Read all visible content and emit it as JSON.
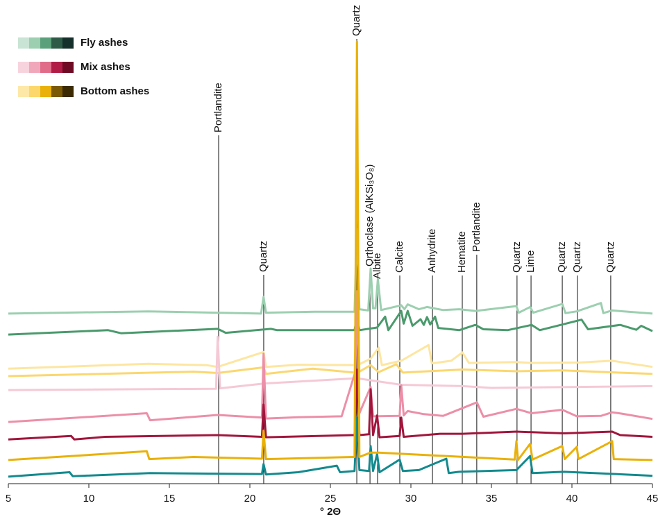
{
  "chart_data": {
    "type": "line",
    "xlabel": "° 2Θ",
    "xlim": [
      5,
      45
    ],
    "xticks": [
      5,
      10,
      15,
      20,
      25,
      30,
      35,
      40,
      45
    ],
    "ylim": [
      0,
      100
    ],
    "legend_groups": [
      {
        "name": "Fly ashes",
        "color": "#17908f",
        "swatches": [
          "#c9e4d4",
          "#9bcfb0",
          "#5aa07a",
          "#2d5b47",
          "#15302a"
        ]
      },
      {
        "name": "Mix ashes",
        "color": "#d9285c",
        "swatches": [
          "#f7d3dd",
          "#f1a7ba",
          "#e06c89",
          "#b01c46",
          "#6e0a24"
        ]
      },
      {
        "name": "Bottom ashes",
        "color": "#e8ac05",
        "swatches": [
          "#fde8a8",
          "#fcd76c",
          "#e9b109",
          "#7a5a05",
          "#3b2a02"
        ]
      }
    ],
    "reference_lines": [
      {
        "x": 18.06,
        "label": "Portlandite"
      },
      {
        "x": 20.86,
        "label": "Quartz"
      },
      {
        "x": 26.64,
        "label": "Quartz"
      },
      {
        "x": 27.46,
        "label": "Orthoclase (AlKSi₃O₈)"
      },
      {
        "x": 27.93,
        "label": "Albite"
      },
      {
        "x": 29.31,
        "label": "Calcite"
      },
      {
        "x": 31.34,
        "label": "Anhydrite"
      },
      {
        "x": 33.19,
        "label": "Hematite"
      },
      {
        "x": 34.09,
        "label": "Portlandite"
      },
      {
        "x": 36.59,
        "label": "Quartz"
      },
      {
        "x": 37.46,
        "label": "Lime"
      },
      {
        "x": 39.4,
        "label": "Quartz"
      },
      {
        "x": 40.34,
        "label": "Quartz"
      },
      {
        "x": 42.41,
        "label": "Quartz"
      }
    ],
    "series": [
      {
        "color": "#9ccfb0",
        "x": [
          5,
          13.7,
          20.7,
          20.85,
          21.0,
          24,
          26.5,
          26.65,
          26.8,
          27.35,
          27.5,
          27.65,
          27.8,
          27.95,
          28.15,
          29.4,
          29.6,
          29.8,
          30.5,
          31,
          32,
          33,
          34,
          36.55,
          36.7,
          37.4,
          37.6,
          39.4,
          39.6,
          40.3,
          41.8,
          41.95,
          42.5,
          45
        ],
        "values": [
          37.8,
          38.3,
          37.8,
          41.6,
          38.0,
          38.2,
          38.2,
          57.1,
          38.8,
          38.5,
          48.1,
          39,
          39,
          45.7,
          38.6,
          39.7,
          38.8,
          39.9,
          38.8,
          39.3,
          38.6,
          38.8,
          38.4,
          39.5,
          38,
          39.3,
          38,
          40,
          37.9,
          38.3,
          40.2,
          37.9,
          38.5,
          37.8
        ]
      },
      {
        "color": "#4a9a6c",
        "x": [
          5,
          11.2,
          12,
          18,
          18.5,
          21.3,
          21.7,
          23.5,
          26.5,
          26.65,
          26.8,
          27.9,
          28.4,
          28.6,
          29.4,
          29.55,
          29.8,
          30.1,
          30.6,
          30.8,
          31,
          31.2,
          31.5,
          31.7,
          33,
          34,
          34.5,
          36,
          37.5,
          38,
          40.6,
          41,
          43,
          44,
          44.3,
          45
        ],
        "values": [
          33.0,
          34.0,
          33.3,
          34.3,
          33.4,
          34.3,
          34.0,
          34.0,
          34,
          37,
          34,
          34.6,
          37.1,
          34,
          38.4,
          35.5,
          38.4,
          35,
          36.5,
          35.2,
          37,
          35.3,
          37.1,
          34.5,
          34,
          35.2,
          34.2,
          34,
          35.2,
          34,
          36.4,
          34.2,
          35.2,
          34.1,
          35,
          33.8
        ]
      },
      {
        "color": "#fde6a1",
        "x": [
          5,
          13.7,
          17.3,
          18,
          20.85,
          21,
          23,
          26.5,
          26.65,
          26.8,
          27.5,
          28.0,
          28.2,
          29.4,
          31.1,
          31.3,
          32.5,
          33.2,
          33.6,
          36.55,
          37.5,
          40.5,
          42.5,
          45
        ],
        "values": [
          25.2,
          26.3,
          26,
          25.6,
          29,
          25.6,
          26.1,
          26,
          36,
          26.2,
          27.5,
          30,
          26,
          27,
          30.6,
          26.4,
          27,
          28.9,
          26.5,
          26.7,
          26.5,
          26.6,
          27,
          25.6
        ]
      },
      {
        "color": "#fbd770",
        "x": [
          5,
          16.5,
          18,
          20.85,
          21,
          23.9,
          26.5,
          26.65,
          26.8,
          27.5,
          28,
          29.1,
          29.5,
          33.2,
          36.55,
          39.4,
          45
        ],
        "values": [
          23.5,
          24.5,
          24.2,
          25.5,
          24,
          25.2,
          24.3,
          40,
          24.5,
          26,
          24.4,
          26.2,
          24.3,
          25,
          24.6,
          24.8,
          24
        ]
      },
      {
        "color": "#f5c9d6",
        "x": [
          5,
          17.9,
          18.0,
          18.15,
          20.85,
          26.65,
          29.4,
          33.2,
          35,
          45
        ],
        "values": [
          20.3,
          20.6,
          32.5,
          20.7,
          21.8,
          23,
          21.5,
          21.2,
          20.8,
          21.2
        ]
      },
      {
        "color": "#ec8fa8",
        "x": [
          5,
          13.6,
          13.8,
          18,
          20.75,
          20.85,
          21,
          23,
          25.7,
          26.55,
          26.65,
          26.8,
          27.5,
          27.65,
          29.3,
          29.4,
          29.55,
          29.8,
          30.8,
          32,
          34.1,
          34.5,
          36.55,
          37.5,
          39.4,
          40.3,
          41.8,
          42.5,
          43.1,
          45
        ],
        "values": [
          13.0,
          15,
          13.4,
          14.6,
          14,
          28.6,
          13.8,
          14.1,
          14.3,
          24.5,
          42.9,
          15,
          21,
          14.3,
          14.4,
          21.4,
          14.5,
          15.5,
          14.8,
          14.4,
          17.5,
          14.2,
          16,
          15,
          15.8,
          14.3,
          14.4,
          15.2,
          14.9,
          13.7
        ]
      },
      {
        "color": "#a0163c",
        "x": [
          5,
          8.9,
          9.1,
          11,
          18,
          20.75,
          20.85,
          21,
          26.5,
          26.65,
          26.8,
          27.4,
          27.5,
          27.65,
          27.9,
          28.05,
          29.3,
          29.4,
          29.55,
          31.8,
          33.2,
          36.55,
          39.5,
          42.5,
          43,
          45
        ],
        "values": [
          9,
          9.8,
          9,
          9.6,
          10,
          9.6,
          17,
          9.5,
          10,
          25,
          10,
          10.2,
          20.5,
          10,
          14.5,
          9.5,
          9.8,
          14,
          9.6,
          10.3,
          10.3,
          10.8,
          10.4,
          10.8,
          10,
          9.6
        ]
      },
      {
        "color": "#138a8e",
        "x": [
          5,
          8.8,
          9,
          13.8,
          20.75,
          20.85,
          21,
          23,
          25.4,
          25.6,
          26.5,
          26.65,
          26.8,
          27.4,
          27.5,
          27.65,
          27.9,
          28.05,
          29.3,
          29.5,
          30.5,
          32.2,
          32.35,
          33,
          36.55,
          37.4,
          37.55,
          39.5,
          42,
          45
        ],
        "values": [
          0.5,
          1.5,
          0.6,
          1.3,
          1.1,
          3.4,
          1,
          1.5,
          3,
          1.5,
          1.8,
          14,
          2,
          1.8,
          7.5,
          1.8,
          5.7,
          1.5,
          4.4,
          1.8,
          2,
          4.6,
          1.3,
          1.6,
          2,
          5.2,
          1.3,
          1.6,
          1.2,
          0.7
        ]
      },
      {
        "color": "#e9b109",
        "x": [
          5,
          13.6,
          13.75,
          16.5,
          20.75,
          20.85,
          21,
          26.5,
          26.65,
          26.8,
          27.5,
          28,
          36.45,
          36.55,
          36.65,
          37.4,
          37.55,
          39.4,
          39.55,
          40.3,
          40.4,
          42.5,
          42.6,
          45
        ],
        "values": [
          4.3,
          6.3,
          4.5,
          5,
          4.6,
          11,
          4.5,
          5,
          100,
          5,
          6,
          6,
          4.4,
          8.6,
          4.3,
          8,
          4.4,
          7.5,
          4.5,
          7.3,
          4.5,
          8.6,
          4.5,
          4.3
        ]
      }
    ]
  }
}
